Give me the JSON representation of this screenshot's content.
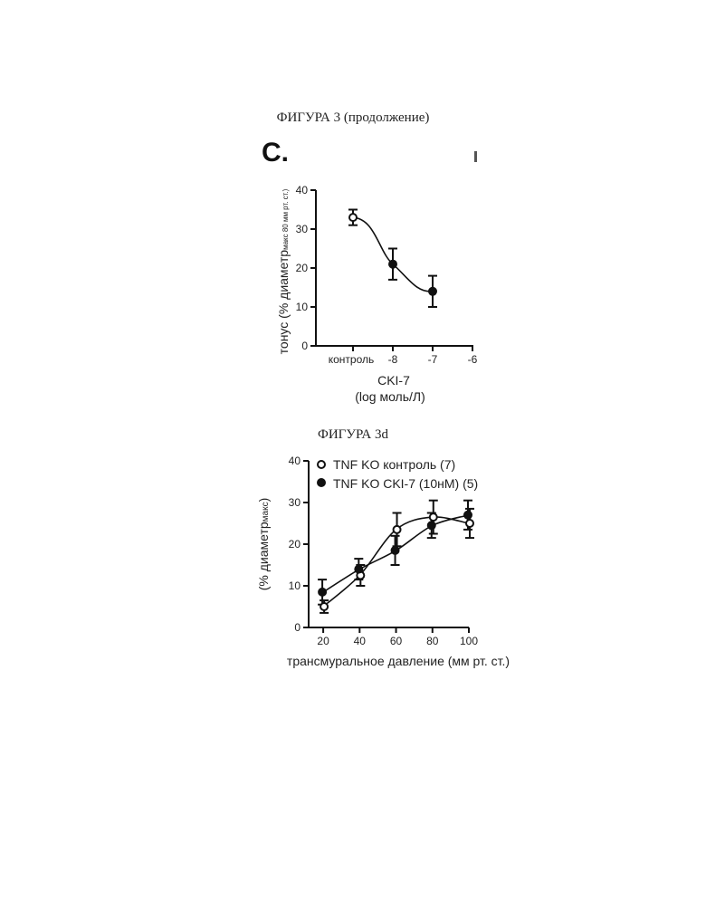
{
  "page_titles": {
    "top": "ФИГУРА 3 (продолжение)",
    "bottom": "ФИГУРА 3d"
  },
  "panel_c": {
    "letter": "C."
  },
  "chart_data": [
    {
      "type": "scatter",
      "panel": "C.",
      "categories": [
        "контроль",
        "-8",
        "-7",
        "-6"
      ],
      "xlabel": "CKI-7",
      "xlabel2": "(log моль/Л)",
      "ylabel": "тонус (% диаметр",
      "ylabel_sub": "макс 80 мм рт. ст.)",
      "ylim": [
        0,
        40
      ],
      "yticks": [
        0,
        10,
        20,
        30,
        40
      ],
      "points": [
        {
          "x": "контроль",
          "y": 33,
          "err": 2,
          "marker": "open"
        },
        {
          "x": "-8",
          "y": 21,
          "err": 4,
          "marker": "filled"
        },
        {
          "x": "-7",
          "y": 14,
          "err": 4,
          "marker": "filled"
        }
      ],
      "fit_curve": true
    },
    {
      "type": "line",
      "panel": "ФИГУРА 3d",
      "x": [
        20,
        40,
        60,
        80,
        100
      ],
      "xticks": [
        "20",
        "40",
        "60",
        "80",
        "100"
      ],
      "xlabel": "трансмуральное давление (мм рт. ст.)",
      "ylabel": "(% диаметр",
      "ylabel_sub": "макс",
      "ylabel_end": ")",
      "ylim": [
        0,
        40
      ],
      "yticks": [
        0,
        10,
        20,
        30,
        40
      ],
      "legend_position": "top-left",
      "series": [
        {
          "name": "TNF KO контроль (7)",
          "marker": "open",
          "values": [
            5,
            12.5,
            23.5,
            26.5,
            25
          ],
          "errors": [
            1.5,
            2.5,
            4,
            4,
            3.5
          ]
        },
        {
          "name": "TNF KO CKI-7 (10нМ) (5)",
          "marker": "filled",
          "values": [
            8.5,
            14,
            18.5,
            24.5,
            27
          ],
          "errors": [
            3,
            2.5,
            3.5,
            3,
            3.5
          ]
        }
      ]
    }
  ]
}
